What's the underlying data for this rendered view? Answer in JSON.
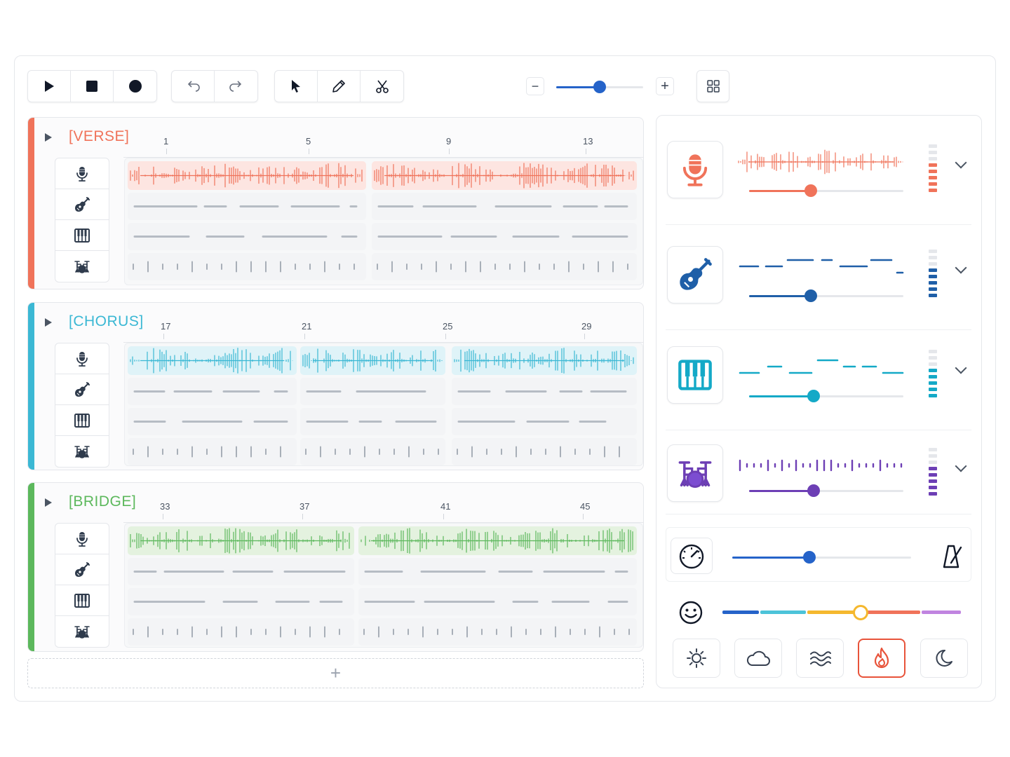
{
  "toolbar": {
    "transport": [
      "play-icon",
      "stop-icon",
      "record-icon"
    ],
    "history": [
      "undo-icon",
      "redo-icon"
    ],
    "tools": [
      "pointer-icon",
      "pencil-icon",
      "scissors-icon"
    ],
    "zoom_value": 0.5,
    "zoom_minus": "−",
    "zoom_plus": "+",
    "grid": "grid-icon"
  },
  "sections": [
    {
      "label": "[VERSE]",
      "color": "#f0735a",
      "bars": [
        "1",
        "5",
        "9",
        "13"
      ]
    },
    {
      "label": "[CHORUS]",
      "color": "#3bb8d4",
      "bars": [
        "17",
        "21",
        "25",
        "29"
      ]
    },
    {
      "label": "[BRIDGE]",
      "color": "#5cb85c",
      "bars": [
        "33",
        "37",
        "41",
        "45"
      ]
    }
  ],
  "add_section": "+",
  "mixer": {
    "tracks": [
      {
        "instrument": "microphone-icon",
        "color": "#f0735a",
        "volume": 0.4
      },
      {
        "instrument": "guitar-icon",
        "color": "#1f5fa8",
        "volume": 0.4
      },
      {
        "instrument": "piano-icon",
        "color": "#14a9c7",
        "volume": 0.42
      },
      {
        "instrument": "drums-icon",
        "color": "#6d3fb5",
        "volume": 0.42
      }
    ],
    "tempo_value": 0.43,
    "mood_value": 0.58,
    "moods": [
      "sun-icon",
      "cloud-icon",
      "waves-icon",
      "fire-icon",
      "moon-icon"
    ],
    "selected_mood": "fire-icon"
  }
}
